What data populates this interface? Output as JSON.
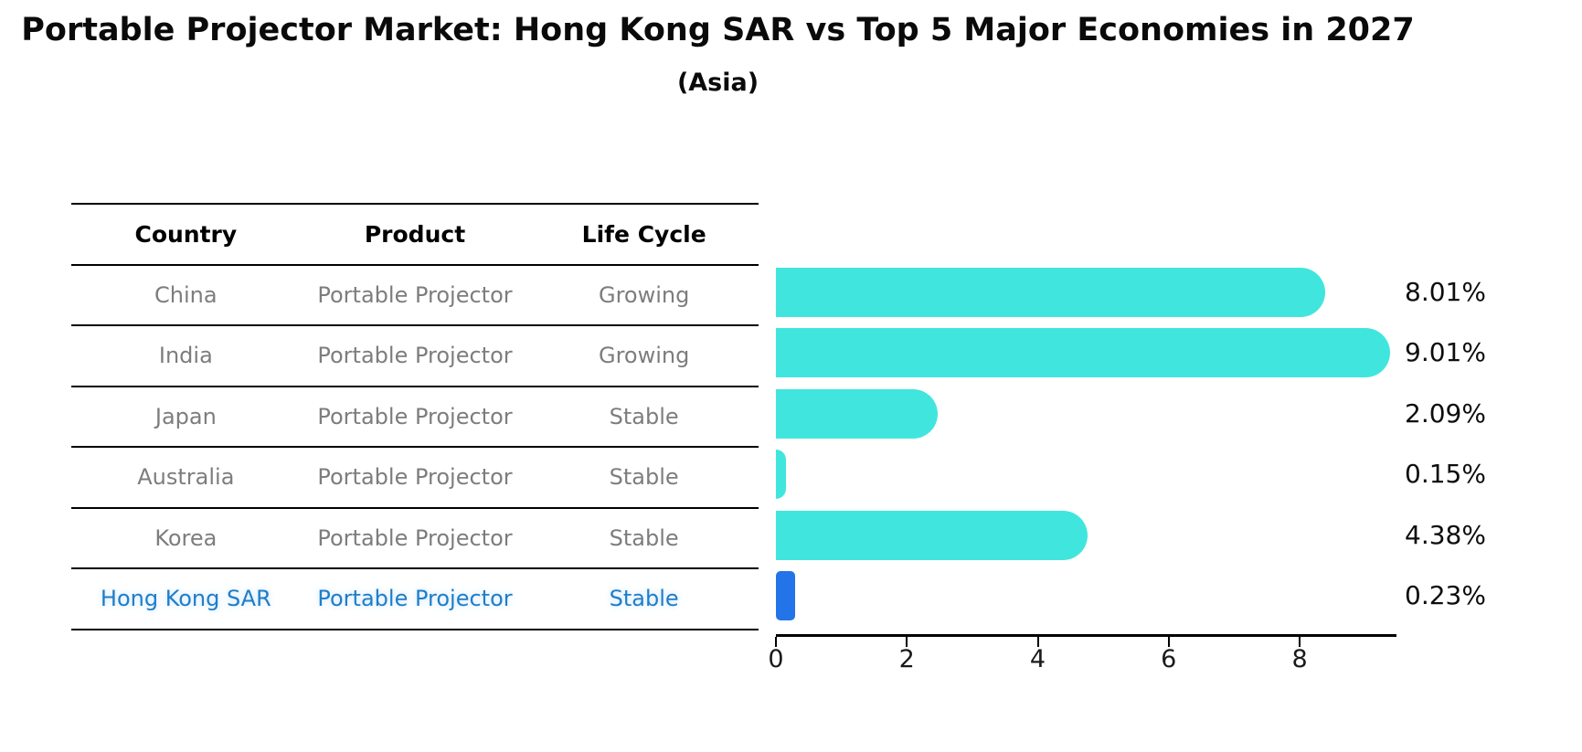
{
  "title": "Portable Projector Market: Hong Kong SAR vs Top 5 Major Economies in 2027",
  "subtitle": "(Asia)",
  "table": {
    "headers": [
      "Country",
      "Product",
      "Life Cycle"
    ],
    "rows": [
      {
        "country": "China",
        "product": "Portable Projector",
        "life_cycle": "Growing",
        "highlight": false
      },
      {
        "country": "India",
        "product": "Portable Projector",
        "life_cycle": "Growing",
        "highlight": false
      },
      {
        "country": "Japan",
        "product": "Portable Projector",
        "life_cycle": "Stable",
        "highlight": false
      },
      {
        "country": "Australia",
        "product": "Portable Projector",
        "life_cycle": "Stable",
        "highlight": false
      },
      {
        "country": "Korea",
        "product": "Portable Projector",
        "life_cycle": "Stable",
        "highlight": false
      },
      {
        "country": "Hong Kong SAR",
        "product": "Portable Projector",
        "life_cycle": "Stable",
        "highlight": true
      }
    ],
    "text_color": "#7d7d7d",
    "header_color": "#000000",
    "highlight_text_color": "#1f7ec8"
  },
  "chart_data": {
    "type": "bar",
    "orientation": "horizontal",
    "title": "Portable Projector Market: Hong Kong SAR vs Top 5 Major Economies in 2027",
    "subtitle": "(Asia)",
    "categories": [
      "China",
      "India",
      "Japan",
      "Australia",
      "Korea",
      "Hong Kong SAR"
    ],
    "values": [
      8.01,
      9.01,
      2.09,
      0.15,
      4.38,
      0.23
    ],
    "value_labels": [
      "8.01%",
      "9.01%",
      "2.09%",
      "0.15%",
      "4.38%",
      "0.23%"
    ],
    "xlabel": "",
    "ylabel": "",
    "xlim": [
      0,
      9.46
    ],
    "xticks": [
      0,
      2,
      4,
      6,
      8
    ],
    "xtick_labels": [
      "0",
      "2",
      "4",
      "6",
      "8"
    ],
    "grid": false,
    "legend": "none",
    "bar_color": "#40E6DE",
    "highlight_index": 5,
    "highlight_color": "#2374E8",
    "highlight_edge_style": "dashed"
  }
}
